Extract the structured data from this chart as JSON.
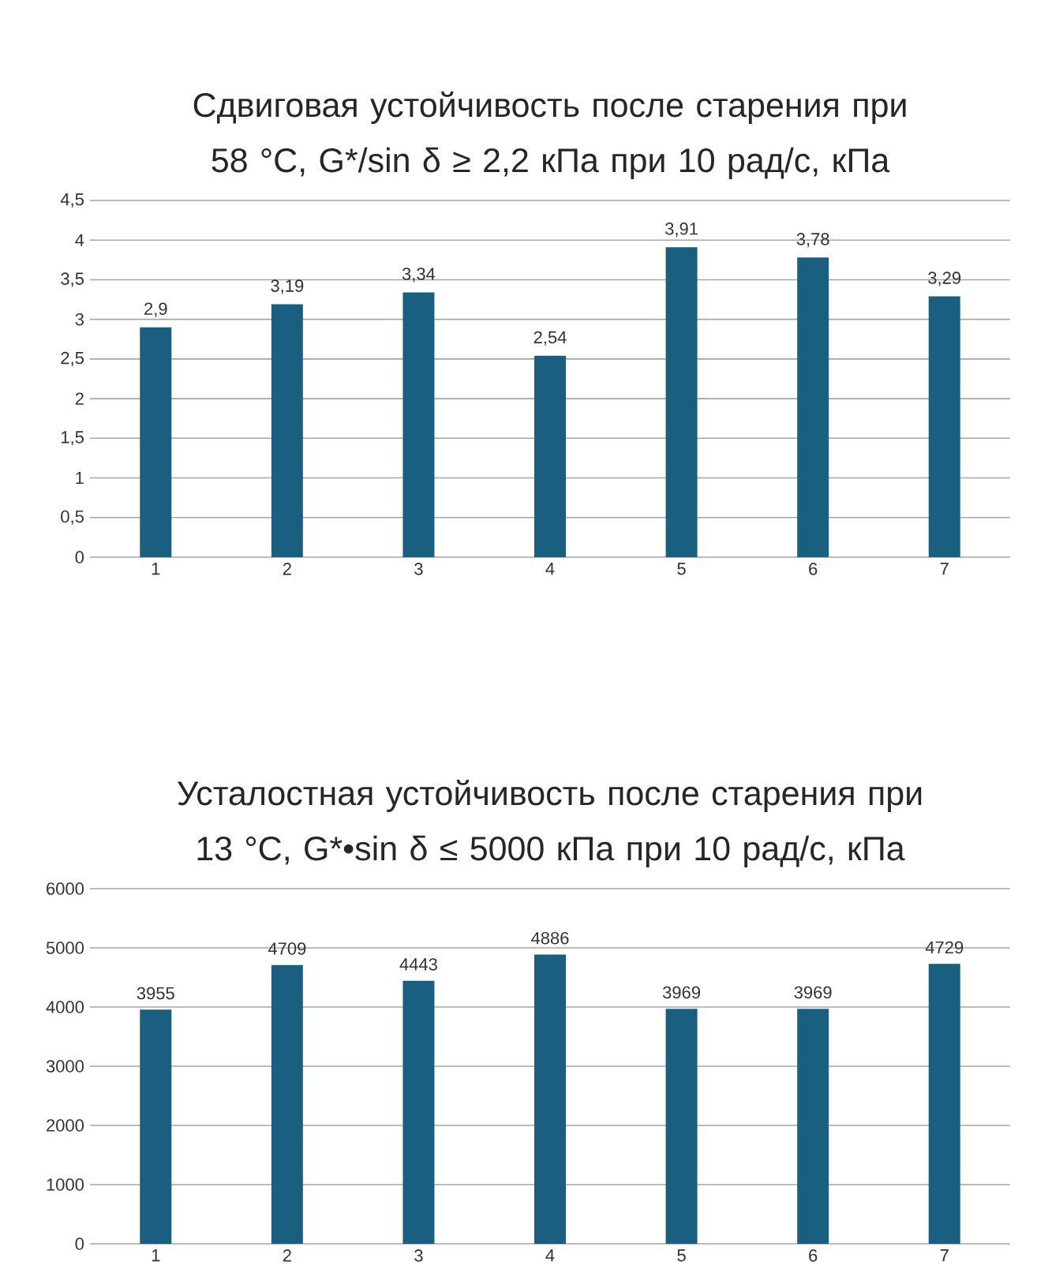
{
  "chart_data": [
    {
      "type": "bar",
      "title": "Сдвиговая устойчивость после старения при 58 °С, G*/sin δ ≥ 2,2 кПа при 10 рад/с, кПа",
      "categories": [
        "1",
        "2",
        "3",
        "4",
        "5",
        "6",
        "7"
      ],
      "values": [
        2.9,
        3.19,
        3.34,
        2.54,
        3.91,
        3.78,
        3.29
      ],
      "value_labels": [
        "2,9",
        "3,19",
        "3,34",
        "2,54",
        "3,91",
        "3,78",
        "3,29"
      ],
      "color": "#1b5f80",
      "ylim": [
        0,
        4.5
      ],
      "yticks": [
        0,
        {
          "value": 0.5,
          "label": "0,5"
        },
        1,
        {
          "value": 1.5,
          "label": "1,5"
        },
        2,
        {
          "value": 2.5,
          "label": "2,5"
        },
        3,
        {
          "value": 3.5,
          "label": "3,5"
        },
        4,
        {
          "value": 4.5,
          "label": "4,5"
        }
      ],
      "grid": "y"
    },
    {
      "type": "bar",
      "title": "Усталостная устойчивость после старения при 13 °С, G*•sin δ ≤ 5000 кПа при 10 рад/с, кПа",
      "categories": [
        "1",
        "2",
        "3",
        "4",
        "5",
        "6",
        "7"
      ],
      "values": [
        3955,
        4709,
        4443,
        4886,
        3969,
        3969,
        4729
      ],
      "data_labels": true,
      "color": "#1b5f80",
      "ylim": [
        0,
        6000
      ],
      "yticks": [
        0,
        1000,
        2000,
        3000,
        4000,
        5000,
        6000
      ],
      "grid": "y"
    }
  ]
}
